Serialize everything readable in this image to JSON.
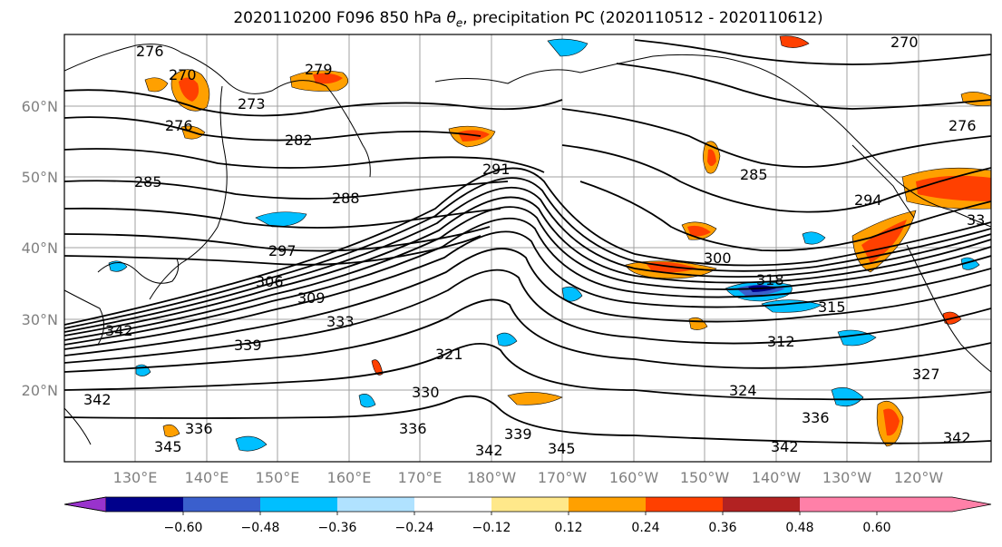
{
  "title": {
    "prefix": "2020110200 F096 850 hPa ",
    "theta": "θ",
    "sub": "e",
    "suffix": ", precipitation PC (2020110512 - 2020110612)"
  },
  "lat_labels": [
    "60°N",
    "50°N",
    "40°N",
    "30°N",
    "20°N"
  ],
  "lon_labels": [
    "130°E",
    "140°E",
    "150°E",
    "160°E",
    "170°E",
    "180°W",
    "170°W",
    "160°W",
    "150°W",
    "140°W",
    "130°W",
    "120°W"
  ],
  "contour_labels": [
    "276",
    "270",
    "279",
    "273",
    "276",
    "282",
    "285",
    "291",
    "288",
    "297",
    "306",
    "309",
    "342",
    "333",
    "339",
    "330",
    "321",
    "336",
    "345",
    "342",
    "339",
    "345",
    "336",
    "342",
    "285",
    "276",
    "270",
    "294",
    "300",
    "318",
    "315",
    "312",
    "324",
    "327",
    "336",
    "342",
    "342",
    "33"
  ],
  "colorbar": {
    "ticks": [
      "−0.60",
      "−0.48",
      "−0.36",
      "−0.24",
      "−0.12",
      "0.12",
      "0.24",
      "0.36",
      "0.48",
      "0.60"
    ],
    "colors": [
      "#9933cc",
      "#00008b",
      "#3a5fcd",
      "#00bfff",
      "#b0e2ff",
      "#ffffff",
      "#ffe88a",
      "#ffa000",
      "#ff4000",
      "#b22222",
      "#ff80a8"
    ]
  }
}
